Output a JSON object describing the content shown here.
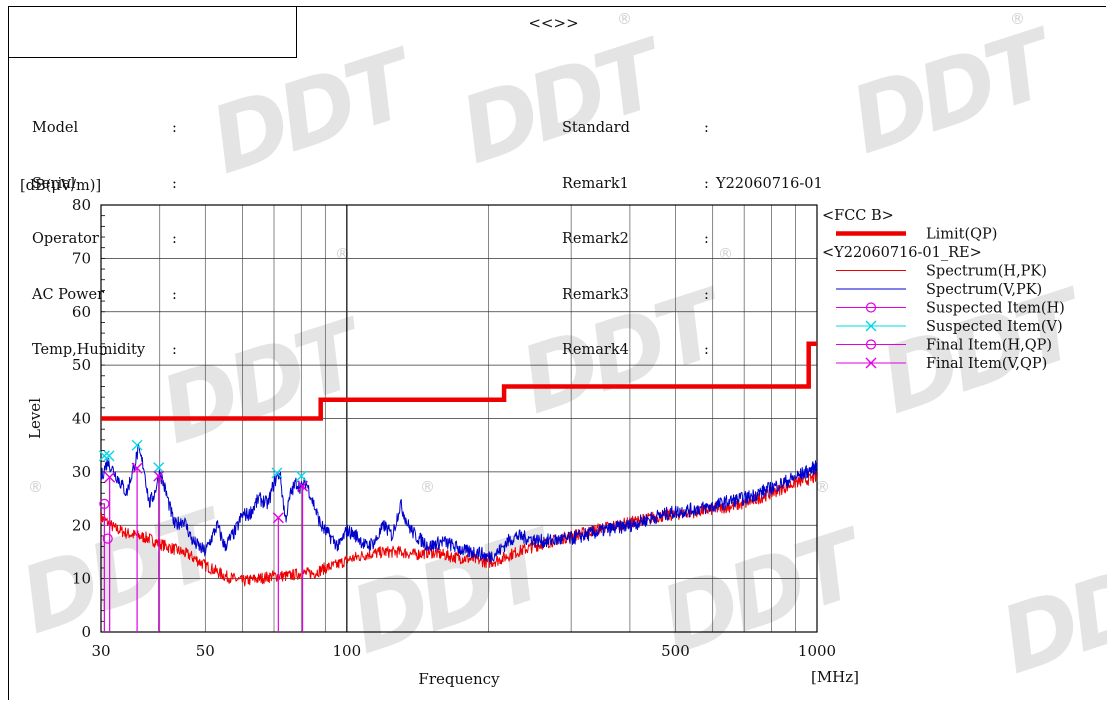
{
  "report": {
    "title": "<<>>",
    "watermark_text": "DDT",
    "watermark_symbol": "®"
  },
  "meta_left": [
    {
      "label": "Model",
      "value": ""
    },
    {
      "label": "Serial",
      "value": ""
    },
    {
      "label": "Operator",
      "value": ""
    },
    {
      "label": "AC Power",
      "value": ""
    },
    {
      "label": "Temp,Humidity",
      "value": ""
    }
  ],
  "meta_right": [
    {
      "label": "Standard",
      "value": ""
    },
    {
      "label": "Remark1",
      "value": "Y22060716-01"
    },
    {
      "label": "Remark2",
      "value": ""
    },
    {
      "label": "Remark3",
      "value": ""
    },
    {
      "label": "Remark4",
      "value": ""
    }
  ],
  "meta_sep": ":",
  "chart_data": {
    "type": "line",
    "y_unit_label": "[dB(μV/m)]",
    "ylabel": "Level",
    "xlabel": "Frequency",
    "x_unit_label": "[MHz]",
    "x_scale": "log",
    "xlim": [
      30,
      1000
    ],
    "ylim": [
      0,
      80
    ],
    "grid": true,
    "x_tick_labels": [
      {
        "value": 30,
        "label": "30"
      },
      {
        "value": 50,
        "label": "50"
      },
      {
        "value": 100,
        "label": "100"
      },
      {
        "value": 500,
        "label": "500"
      },
      {
        "value": 1000,
        "label": "1000"
      }
    ],
    "y_ticks": [
      0,
      10,
      20,
      30,
      40,
      50,
      60,
      70,
      80
    ],
    "legend_position": "right",
    "legend": [
      {
        "kind": "header",
        "label": "<FCC B>"
      },
      {
        "kind": "limit",
        "label": "Limit(QP)",
        "color": "#ee0000"
      },
      {
        "kind": "header",
        "label": "<Y22060716-01_RE>"
      },
      {
        "kind": "line",
        "label": "Spectrum(H,PK)",
        "color": "#ee0000"
      },
      {
        "kind": "line",
        "label": "Spectrum(V,PK)",
        "color": "#0000cc"
      },
      {
        "kind": "circle",
        "label": "Suspected Item(H)",
        "color": "#e000e0"
      },
      {
        "kind": "cross",
        "label": "Suspected Item(V)",
        "color": "#00d8e8"
      },
      {
        "kind": "circle",
        "label": "Final Item(H,QP)",
        "color": "#e000e0"
      },
      {
        "kind": "cross",
        "label": "Final Item(V,QP)",
        "color": "#e000e0"
      }
    ],
    "limit": {
      "name": "Limit(QP)",
      "color": "#ee0000",
      "segments": [
        {
          "x": [
            30,
            88
          ],
          "y": 40
        },
        {
          "x": [
            88,
            216
          ],
          "y": 43.5
        },
        {
          "x": [
            216,
            960
          ],
          "y": 46
        },
        {
          "x": [
            960,
            1000
          ],
          "y": 54
        }
      ]
    },
    "series": [
      {
        "name": "Spectrum(H,PK)",
        "color": "#ee0000",
        "x": [
          30,
          31,
          32,
          34,
          36,
          38,
          40,
          43,
          46,
          50,
          55,
          60,
          65,
          70,
          75,
          80,
          85,
          90,
          95,
          100,
          110,
          120,
          130,
          140,
          150,
          170,
          190,
          200,
          210,
          230,
          260,
          300,
          350,
          400,
          450,
          500,
          550,
          600,
          650,
          700,
          750,
          800,
          850,
          900,
          950,
          1000
        ],
        "y": [
          21.5,
          20.5,
          19.5,
          18.5,
          18,
          17.5,
          16.5,
          15.5,
          14.5,
          12.5,
          10.5,
          9.5,
          10,
          10.5,
          10.5,
          11,
          11,
          12,
          12.5,
          13.5,
          14.5,
          15,
          15,
          14.5,
          15,
          14,
          13.5,
          13,
          13.5,
          15,
          16.5,
          18,
          19.5,
          20.5,
          21.5,
          22,
          22.5,
          23,
          23.5,
          24,
          25,
          26,
          27,
          28,
          28.5,
          29
        ]
      },
      {
        "name": "Spectrum(V,PK)",
        "color": "#0000cc",
        "x": [
          30,
          31,
          32,
          33,
          34,
          35,
          36,
          37,
          38,
          39,
          40,
          41,
          43,
          45,
          47,
          50,
          53,
          55,
          58,
          60,
          62,
          65,
          68,
          70,
          72,
          74,
          76,
          78,
          80,
          82,
          85,
          88,
          92,
          96,
          100,
          105,
          110,
          115,
          120,
          125,
          130,
          135,
          140,
          145,
          150,
          160,
          170,
          180,
          190,
          200,
          210,
          220,
          230,
          260,
          300,
          350,
          400,
          450,
          500,
          550,
          600,
          650,
          700,
          750,
          800,
          850,
          900,
          950,
          1000
        ],
        "y": [
          29,
          32,
          30,
          28,
          26,
          30,
          34,
          31,
          24,
          26,
          30,
          27,
          20,
          21,
          17,
          15,
          20,
          16,
          19,
          22,
          22,
          25,
          24,
          28,
          30,
          21,
          26,
          28,
          27,
          28,
          24,
          20,
          18,
          16,
          19,
          18,
          16,
          17,
          20,
          18,
          24,
          20,
          18,
          17,
          16,
          17,
          16,
          15,
          15,
          14,
          15,
          17,
          18,
          17,
          17.5,
          19,
          20,
          21.5,
          22.5,
          23,
          23.5,
          24.5,
          25,
          26,
          27,
          28,
          29,
          30,
          31
        ]
      }
    ],
    "markers": [
      {
        "name": "Suspected Item(V)",
        "shape": "cross",
        "color": "#00d8e8",
        "points": [
          [
            30.5,
            33
          ],
          [
            31.2,
            33
          ],
          [
            35.8,
            35
          ],
          [
            39.8,
            30.8
          ],
          [
            71,
            29.8
          ],
          [
            80,
            29.2
          ]
        ]
      },
      {
        "name": "Suspected Item(H)",
        "shape": "circle",
        "color": "#e000e0",
        "points": [
          [
            30.5,
            24
          ],
          [
            31.0,
            17.5
          ]
        ]
      },
      {
        "name": "Final Item(V,QP)",
        "shape": "cross",
        "color": "#e000e0",
        "points": [
          [
            31.3,
            29
          ],
          [
            35.8,
            30.7
          ],
          [
            39.8,
            29.2
          ],
          [
            71.5,
            21.4
          ],
          [
            80.5,
            27.3
          ]
        ]
      }
    ],
    "marker_lines": {
      "color": "#e000e0",
      "x": [
        30.5,
        31.3,
        35.8,
        39.8,
        71.5,
        80.5
      ],
      "y": [
        24,
        29,
        30.7,
        29.2,
        21.4,
        27.3
      ]
    }
  }
}
